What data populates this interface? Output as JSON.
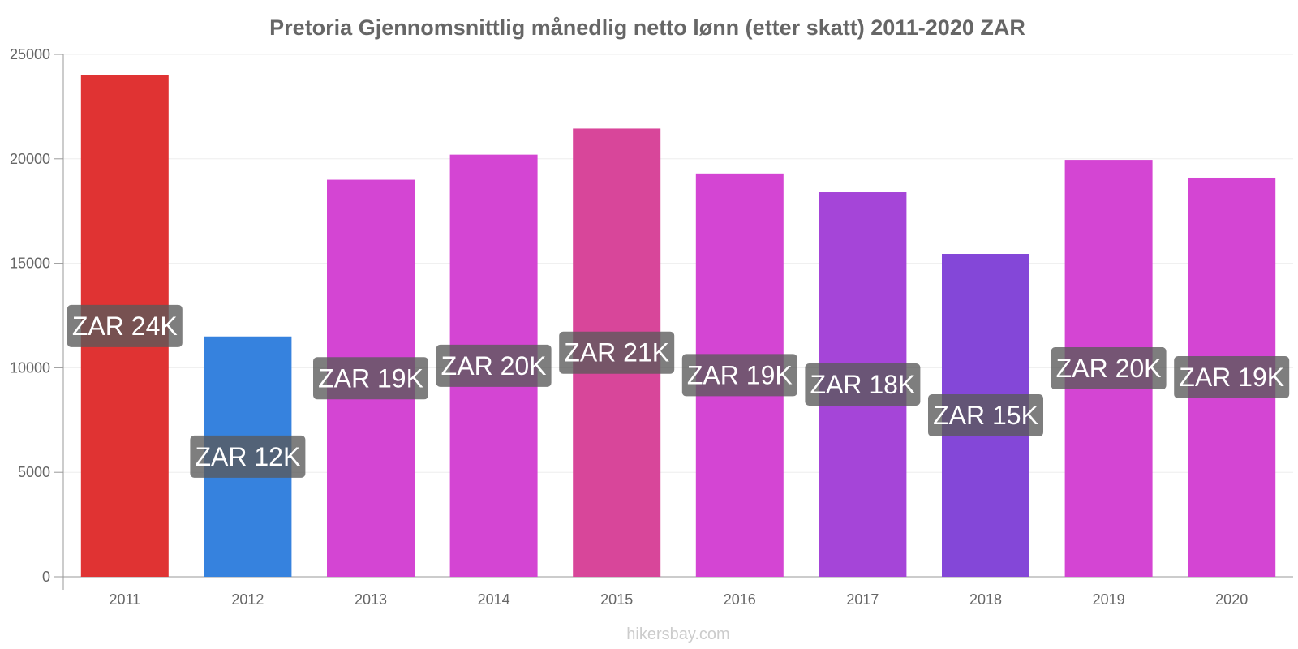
{
  "chart_data": {
    "type": "bar",
    "title": "Pretoria Gjennomsnittlig månedlig netto lønn (etter skatt) 2011-2020 ZAR",
    "categories": [
      "2011",
      "2012",
      "2013",
      "2014",
      "2015",
      "2016",
      "2017",
      "2018",
      "2019",
      "2020"
    ],
    "values": [
      24000,
      11500,
      19000,
      20200,
      21450,
      19300,
      18400,
      15450,
      19950,
      19100
    ],
    "data_labels": [
      "ZAR 24K",
      "ZAR 12K",
      "ZAR 19K",
      "ZAR 20K",
      "ZAR 21K",
      "ZAR 19K",
      "ZAR 18K",
      "ZAR 15K",
      "ZAR 20K",
      "ZAR 19K"
    ],
    "bar_colors": [
      "#e03333",
      "#3682de",
      "#d445d3",
      "#d445d3",
      "#d8469a",
      "#d445d3",
      "#a545d8",
      "#8447d8",
      "#d445d3",
      "#d445d3"
    ],
    "label_box_color": "#5a5a5a",
    "ylim": [
      0,
      25000
    ],
    "yticks": [
      0,
      5000,
      10000,
      15000,
      20000,
      25000
    ],
    "grid": true,
    "xlabel": "",
    "ylabel": ""
  },
  "footer": {
    "source": "hikersbay.com"
  }
}
